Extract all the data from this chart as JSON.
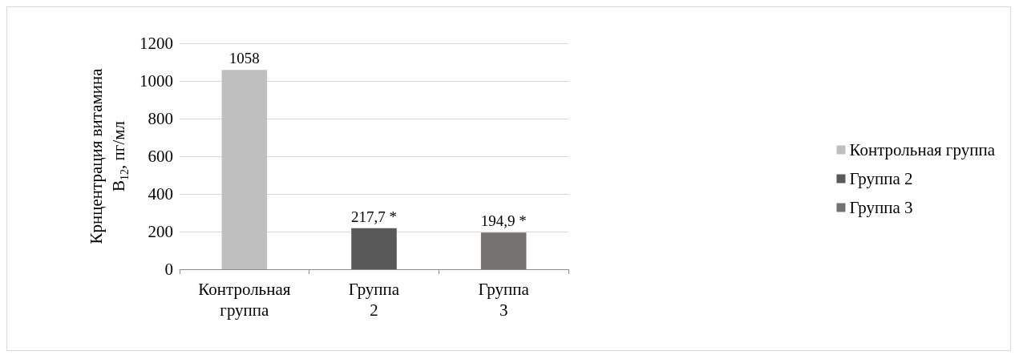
{
  "chart_data": {
    "type": "bar",
    "ylabel": "Крнцентрация витамина B$_{12}$, пг/мл",
    "categories": [
      "Контрольная группа",
      "Группа 2",
      "Группа 3"
    ],
    "series": [
      {
        "name": "Контрольная группа",
        "color": "#bfbfbf",
        "values": [
          1058,
          null,
          null
        ],
        "value_labels": [
          "1058",
          null,
          null
        ]
      },
      {
        "name": "Группа 2",
        "color": "#595959",
        "values": [
          null,
          217.7,
          null
        ],
        "value_labels": [
          null,
          "217,7 *",
          null
        ]
      },
      {
        "name": "Группа 3",
        "color": "#767171",
        "values": [
          null,
          null,
          194.9
        ],
        "value_labels": [
          null,
          null,
          "194,9 *"
        ]
      }
    ],
    "ylim": [
      0,
      1200
    ],
    "yticks": [
      0,
      200,
      400,
      600,
      800,
      1000,
      1200
    ],
    "grid": "y",
    "legend": "right"
  }
}
